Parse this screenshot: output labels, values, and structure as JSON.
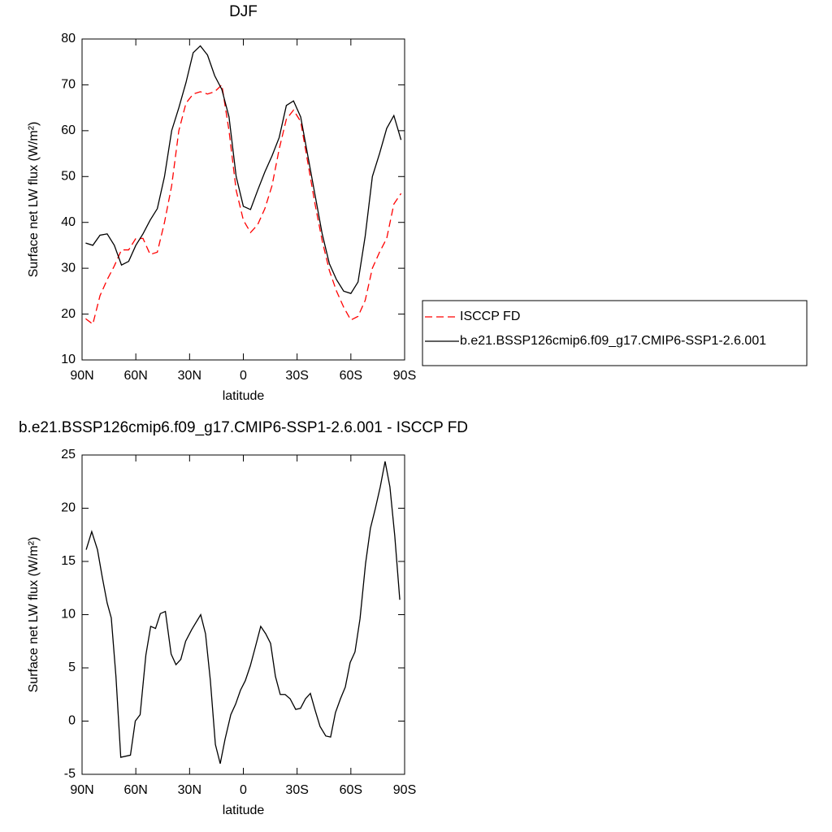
{
  "chart_data": [
    {
      "type": "line",
      "title": "DJF",
      "x_label": "latitude",
      "y_label": "Surface net LW flux (W/m²)",
      "x": [
        88,
        84,
        80,
        76,
        72,
        68,
        64,
        60,
        56,
        52,
        48,
        44,
        40,
        36,
        32,
        28,
        24,
        20,
        16,
        12,
        8,
        4,
        0,
        -4,
        -8,
        -12,
        -16,
        -20,
        -24,
        -28,
        -32,
        -36,
        -40,
        -44,
        -48,
        -52,
        -56,
        -60,
        -64,
        -68,
        -72,
        -76,
        -80,
        -84,
        -88
      ],
      "series": [
        {
          "name": "ISCCP FD",
          "color": "#ff0000",
          "linestyle": "dashed",
          "values": [
            19,
            17.8,
            24,
            27.5,
            30.5,
            34,
            34,
            36.5,
            36.5,
            33,
            33.5,
            40,
            48,
            60,
            66,
            68,
            68.5,
            68,
            68.5,
            70,
            60,
            47,
            40.5,
            37.8,
            39.5,
            43,
            48,
            56,
            62.5,
            64.5,
            62,
            53,
            44,
            36,
            29.5,
            25,
            21.5,
            18.7,
            19.5,
            23,
            30,
            33.5,
            36.5,
            44,
            46.3
          ]
        },
        {
          "name": "b.e21.BSSP126cmip6.f09_g17.CMIP6-SSP1-2.6.001",
          "color": "#000000",
          "linestyle": "solid",
          "values": [
            35.5,
            35,
            37.2,
            37.5,
            35,
            30.7,
            31.5,
            35,
            37.5,
            40.5,
            43,
            50,
            60,
            65,
            70.5,
            77,
            78.5,
            76.5,
            72,
            69,
            63,
            50,
            43.5,
            42.8,
            47,
            51,
            54.5,
            58.5,
            65.5,
            66.5,
            63,
            54.5,
            46,
            37.5,
            31,
            27.5,
            25,
            24.5,
            27,
            37,
            50,
            55,
            60.5,
            63.3,
            58
          ]
        }
      ],
      "xlim": [
        90,
        -90
      ],
      "ylim": [
        10,
        80
      ],
      "xticks": [
        {
          "value": 90,
          "label": "90N"
        },
        {
          "value": 60,
          "label": "60N"
        },
        {
          "value": 30,
          "label": "30N"
        },
        0,
        {
          "value": -30,
          "label": "30S"
        },
        {
          "value": -60,
          "label": "60S"
        },
        {
          "value": -90,
          "label": "90S"
        }
      ],
      "yticks": [
        10,
        20,
        30,
        40,
        50,
        60,
        70,
        80
      ],
      "legend": "right"
    },
    {
      "type": "line",
      "title": "b.e21.BSSP126cmip6.f09_g17.CMIP6-SSP1-2.6.001 - ISCCP FD",
      "x_label": "latitude",
      "y_label": "Surface net LW flux (W/m²)",
      "x": [
        87.7,
        84.6,
        81.4,
        78.7,
        76.0,
        73.7,
        71.1,
        68.4,
        63.0,
        60.3,
        57.6,
        54.4,
        51.7,
        49.0,
        46.3,
        43.5,
        40.3,
        37.6,
        34.9,
        32.2,
        28.8,
        23.8,
        21.1,
        18.4,
        15.6,
        12.9,
        10.2,
        7.0,
        4.3,
        1.6,
        -1.1,
        -3.9,
        -6.6,
        -9.7,
        -12.5,
        -15.2,
        -17.9,
        -20.6,
        -23.3,
        -26.1,
        -29.2,
        -31.9,
        -34.7,
        -37.4,
        -40.1,
        -42.8,
        -46.0,
        -48.7,
        -51.4,
        -54.2,
        -56.9,
        -59.6,
        -62.3,
        -65.1,
        -68.2,
        -70.9,
        -73.7,
        -76.4,
        -79.1,
        -81.8,
        -84.5,
        -87.3
      ],
      "values": [
        16.1,
        17.8,
        16.1,
        13.5,
        11.1,
        9.7,
        4.2,
        -3.4,
        -3.2,
        0,
        0.6,
        6.2,
        8.9,
        8.7,
        10.1,
        10.3,
        6.3,
        5.3,
        5.8,
        7.5,
        8.6,
        10,
        8.2,
        3.8,
        -2.2,
        -4,
        -1.7,
        0.6,
        1.6,
        2.9,
        3.8,
        5.2,
        6.9,
        8.9,
        8.2,
        7.3,
        4.2,
        2.5,
        2.5,
        2.1,
        1.1,
        1.2,
        2.1,
        2.6,
        1,
        -0.5,
        -1.4,
        -1.5,
        0.8,
        2.1,
        3.2,
        5.5,
        6.5,
        9.6,
        14.8,
        18.1,
        20,
        22,
        24.4,
        22,
        17.4,
        11.4
      ],
      "color": "#000000",
      "linestyle": "solid",
      "xlim": [
        90,
        -90
      ],
      "ylim": [
        -5,
        25
      ],
      "xticks": [
        {
          "value": 90,
          "label": "90N"
        },
        {
          "value": 60,
          "label": "60N"
        },
        {
          "value": 30,
          "label": "30N"
        },
        0,
        {
          "value": -30,
          "label": "30S"
        },
        {
          "value": -60,
          "label": "60S"
        },
        {
          "value": -90,
          "label": "90S"
        }
      ],
      "yticks": [
        -5,
        0,
        5,
        10,
        15,
        20,
        25
      ]
    }
  ]
}
